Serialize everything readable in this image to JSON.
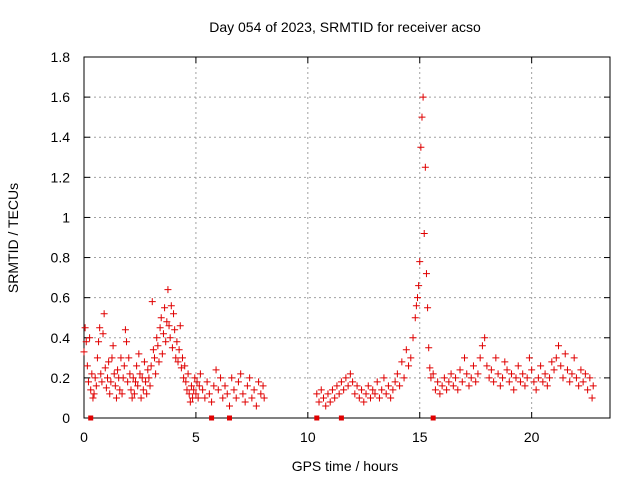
{
  "chart_data": {
    "type": "scatter",
    "title": "Day 054 of 2023, SRMTID for receiver acso",
    "xlabel": "GPS time / hours",
    "ylabel": "SRMTID / TECUs",
    "xlim": [
      0,
      23.5
    ],
    "ylim": [
      0,
      1.8
    ],
    "xticks": [
      0,
      5,
      10,
      15,
      20
    ],
    "xtick_labels": [
      "0",
      "5",
      "10",
      "15",
      "20"
    ],
    "yticks": [
      0,
      0.2,
      0.4,
      0.6,
      0.8,
      1.0,
      1.2,
      1.4,
      1.6,
      1.8
    ],
    "ytick_labels": [
      "0",
      "0.2",
      "0.4",
      "0.6",
      "0.8",
      "1",
      "1.2",
      "1.4",
      "1.6",
      "1.8"
    ],
    "grid": true,
    "marker": "+",
    "marker_color": "#e00000",
    "series": [
      {
        "name": "SRMTID",
        "points": [
          [
            0.0,
            0.33
          ],
          [
            0.05,
            0.45
          ],
          [
            0.1,
            0.38
          ],
          [
            0.15,
            0.26
          ],
          [
            0.2,
            0.18
          ],
          [
            0.25,
            0.4
          ],
          [
            0.3,
            0.14
          ],
          [
            0.35,
            0.22
          ],
          [
            0.4,
            0.1
          ],
          [
            0.45,
            0.12
          ],
          [
            0.5,
            0.2
          ],
          [
            0.55,
            0.16
          ],
          [
            0.6,
            0.3
          ],
          [
            0.65,
            0.38
          ],
          [
            0.7,
            0.45
          ],
          [
            0.75,
            0.22
          ],
          [
            0.8,
            0.18
          ],
          [
            0.85,
            0.42
          ],
          [
            0.9,
            0.52
          ],
          [
            0.95,
            0.25
          ],
          [
            1.0,
            0.15
          ],
          [
            1.05,
            0.2
          ],
          [
            1.1,
            0.28
          ],
          [
            1.15,
            0.12
          ],
          [
            1.2,
            0.18
          ],
          [
            1.25,
            0.3
          ],
          [
            1.3,
            0.36
          ],
          [
            1.35,
            0.22
          ],
          [
            1.4,
            0.16
          ],
          [
            1.45,
            0.1
          ],
          [
            1.5,
            0.24
          ],
          [
            1.55,
            0.2
          ],
          [
            1.6,
            0.14
          ],
          [
            1.65,
            0.3
          ],
          [
            1.7,
            0.12
          ],
          [
            1.75,
            0.2
          ],
          [
            1.8,
            0.26
          ],
          [
            1.85,
            0.44
          ],
          [
            1.9,
            0.38
          ],
          [
            1.95,
            0.18
          ],
          [
            2.0,
            0.3
          ],
          [
            2.05,
            0.22
          ],
          [
            2.1,
            0.14
          ],
          [
            2.15,
            0.1
          ],
          [
            2.2,
            0.2
          ],
          [
            2.25,
            0.12
          ],
          [
            2.3,
            0.18
          ],
          [
            2.35,
            0.26
          ],
          [
            2.4,
            0.16
          ],
          [
            2.45,
            0.32
          ],
          [
            2.5,
            0.22
          ],
          [
            2.55,
            0.1
          ],
          [
            2.6,
            0.2
          ],
          [
            2.65,
            0.14
          ],
          [
            2.7,
            0.28
          ],
          [
            2.75,
            0.18
          ],
          [
            2.8,
            0.12
          ],
          [
            2.85,
            0.24
          ],
          [
            2.9,
            0.2
          ],
          [
            2.95,
            0.16
          ],
          [
            3.0,
            0.26
          ],
          [
            3.05,
            0.58
          ],
          [
            3.1,
            0.34
          ],
          [
            3.15,
            0.3
          ],
          [
            3.2,
            0.22
          ],
          [
            3.25,
            0.4
          ],
          [
            3.3,
            0.36
          ],
          [
            3.35,
            0.28
          ],
          [
            3.4,
            0.45
          ],
          [
            3.45,
            0.5
          ],
          [
            3.5,
            0.32
          ],
          [
            3.55,
            0.42
          ],
          [
            3.6,
            0.55
          ],
          [
            3.65,
            0.38
          ],
          [
            3.7,
            0.48
          ],
          [
            3.75,
            0.64
          ],
          [
            3.8,
            0.46
          ],
          [
            3.85,
            0.4
          ],
          [
            3.9,
            0.56
          ],
          [
            3.95,
            0.35
          ],
          [
            4.0,
            0.52
          ],
          [
            4.05,
            0.44
          ],
          [
            4.1,
            0.3
          ],
          [
            4.15,
            0.38
          ],
          [
            4.2,
            0.28
          ],
          [
            4.25,
            0.34
          ],
          [
            4.3,
            0.46
          ],
          [
            4.35,
            0.25
          ],
          [
            4.4,
            0.3
          ],
          [
            4.45,
            0.2
          ],
          [
            4.5,
            0.26
          ],
          [
            4.55,
            0.18
          ],
          [
            4.6,
            0.14
          ],
          [
            4.65,
            0.22
          ],
          [
            4.7,
            0.12
          ],
          [
            4.75,
            0.08
          ],
          [
            4.8,
            0.16
          ],
          [
            4.85,
            0.1
          ],
          [
            4.9,
            0.14
          ],
          [
            4.95,
            0.2
          ],
          [
            5.0,
            0.12
          ],
          [
            5.05,
            0.18
          ],
          [
            5.1,
            0.1
          ],
          [
            5.15,
            0.16
          ],
          [
            5.2,
            0.22
          ],
          [
            5.3,
            0.14
          ],
          [
            5.4,
            0.1
          ],
          [
            5.5,
            0.18
          ],
          [
            5.6,
            0.12
          ],
          [
            5.7,
            0.08
          ],
          [
            5.8,
            0.16
          ],
          [
            5.9,
            0.24
          ],
          [
            6.0,
            0.14
          ],
          [
            6.1,
            0.2
          ],
          [
            6.2,
            0.1
          ],
          [
            6.3,
            0.16
          ],
          [
            6.4,
            0.12
          ],
          [
            6.5,
            0.06
          ],
          [
            6.6,
            0.2
          ],
          [
            6.7,
            0.14
          ],
          [
            6.8,
            0.1
          ],
          [
            6.9,
            0.18
          ],
          [
            7.0,
            0.22
          ],
          [
            7.1,
            0.12
          ],
          [
            7.2,
            0.08
          ],
          [
            7.3,
            0.16
          ],
          [
            7.4,
            0.2
          ],
          [
            7.5,
            0.1
          ],
          [
            7.6,
            0.14
          ],
          [
            7.7,
            0.06
          ],
          [
            7.8,
            0.18
          ],
          [
            7.9,
            0.12
          ],
          [
            8.0,
            0.16
          ],
          [
            8.05,
            0.1
          ],
          [
            10.4,
            0.12
          ],
          [
            10.5,
            0.08
          ],
          [
            10.6,
            0.14
          ],
          [
            10.7,
            0.1
          ],
          [
            10.8,
            0.06
          ],
          [
            10.9,
            0.12
          ],
          [
            11.0,
            0.08
          ],
          [
            11.1,
            0.14
          ],
          [
            11.2,
            0.1
          ],
          [
            11.3,
            0.16
          ],
          [
            11.4,
            0.12
          ],
          [
            11.5,
            0.18
          ],
          [
            11.6,
            0.14
          ],
          [
            11.7,
            0.2
          ],
          [
            11.8,
            0.16
          ],
          [
            11.9,
            0.22
          ],
          [
            12.0,
            0.18
          ],
          [
            12.1,
            0.12
          ],
          [
            12.2,
            0.16
          ],
          [
            12.3,
            0.1
          ],
          [
            12.4,
            0.14
          ],
          [
            12.5,
            0.08
          ],
          [
            12.6,
            0.12
          ],
          [
            12.7,
            0.16
          ],
          [
            12.8,
            0.1
          ],
          [
            12.9,
            0.14
          ],
          [
            13.0,
            0.12
          ],
          [
            13.1,
            0.18
          ],
          [
            13.2,
            0.1
          ],
          [
            13.3,
            0.14
          ],
          [
            13.4,
            0.2
          ],
          [
            13.5,
            0.12
          ],
          [
            13.6,
            0.16
          ],
          [
            13.7,
            0.1
          ],
          [
            13.8,
            0.14
          ],
          [
            13.9,
            0.18
          ],
          [
            14.0,
            0.22
          ],
          [
            14.1,
            0.16
          ],
          [
            14.2,
            0.28
          ],
          [
            14.3,
            0.2
          ],
          [
            14.4,
            0.34
          ],
          [
            14.5,
            0.26
          ],
          [
            14.6,
            0.3
          ],
          [
            14.7,
            0.4
          ],
          [
            14.8,
            0.5
          ],
          [
            14.85,
            0.56
          ],
          [
            14.9,
            0.6
          ],
          [
            14.95,
            0.66
          ],
          [
            15.0,
            0.78
          ],
          [
            15.05,
            1.35
          ],
          [
            15.1,
            1.5
          ],
          [
            15.15,
            1.6
          ],
          [
            15.2,
            0.92
          ],
          [
            15.25,
            1.25
          ],
          [
            15.3,
            0.72
          ],
          [
            15.35,
            0.55
          ],
          [
            15.4,
            0.35
          ],
          [
            15.45,
            0.25
          ],
          [
            15.5,
            0.2
          ],
          [
            15.6,
            0.22
          ],
          [
            15.7,
            0.14
          ],
          [
            15.8,
            0.18
          ],
          [
            15.9,
            0.12
          ],
          [
            16.0,
            0.16
          ],
          [
            16.1,
            0.2
          ],
          [
            16.2,
            0.14
          ],
          [
            16.3,
            0.18
          ],
          [
            16.4,
            0.22
          ],
          [
            16.5,
            0.16
          ],
          [
            16.6,
            0.2
          ],
          [
            16.7,
            0.14
          ],
          [
            16.8,
            0.24
          ],
          [
            16.9,
            0.18
          ],
          [
            17.0,
            0.3
          ],
          [
            17.1,
            0.22
          ],
          [
            17.2,
            0.16
          ],
          [
            17.3,
            0.2
          ],
          [
            17.4,
            0.26
          ],
          [
            17.5,
            0.18
          ],
          [
            17.6,
            0.22
          ],
          [
            17.7,
            0.3
          ],
          [
            17.8,
            0.36
          ],
          [
            17.9,
            0.4
          ],
          [
            18.0,
            0.26
          ],
          [
            18.1,
            0.2
          ],
          [
            18.2,
            0.24
          ],
          [
            18.3,
            0.18
          ],
          [
            18.4,
            0.3
          ],
          [
            18.5,
            0.22
          ],
          [
            18.6,
            0.16
          ],
          [
            18.7,
            0.2
          ],
          [
            18.8,
            0.28
          ],
          [
            18.9,
            0.24
          ],
          [
            19.0,
            0.18
          ],
          [
            19.1,
            0.22
          ],
          [
            19.2,
            0.14
          ],
          [
            19.3,
            0.2
          ],
          [
            19.4,
            0.26
          ],
          [
            19.5,
            0.18
          ],
          [
            19.6,
            0.22
          ],
          [
            19.7,
            0.16
          ],
          [
            19.8,
            0.2
          ],
          [
            19.9,
            0.3
          ],
          [
            20.0,
            0.24
          ],
          [
            20.1,
            0.18
          ],
          [
            20.2,
            0.14
          ],
          [
            20.3,
            0.2
          ],
          [
            20.4,
            0.26
          ],
          [
            20.5,
            0.18
          ],
          [
            20.6,
            0.22
          ],
          [
            20.7,
            0.16
          ],
          [
            20.8,
            0.2
          ],
          [
            20.9,
            0.28
          ],
          [
            21.0,
            0.24
          ],
          [
            21.1,
            0.3
          ],
          [
            21.2,
            0.36
          ],
          [
            21.3,
            0.26
          ],
          [
            21.4,
            0.2
          ],
          [
            21.5,
            0.32
          ],
          [
            21.6,
            0.24
          ],
          [
            21.7,
            0.18
          ],
          [
            21.8,
            0.22
          ],
          [
            21.9,
            0.3
          ],
          [
            22.0,
            0.2
          ],
          [
            22.1,
            0.16
          ],
          [
            22.2,
            0.24
          ],
          [
            22.3,
            0.18
          ],
          [
            22.4,
            0.22
          ],
          [
            22.5,
            0.14
          ],
          [
            22.6,
            0.2
          ],
          [
            22.7,
            0.1
          ],
          [
            22.75,
            0.16
          ]
        ]
      }
    ],
    "zero_markers_x": [
      0.3,
      5.7,
      6.5,
      10.4,
      11.5,
      15.6
    ]
  }
}
